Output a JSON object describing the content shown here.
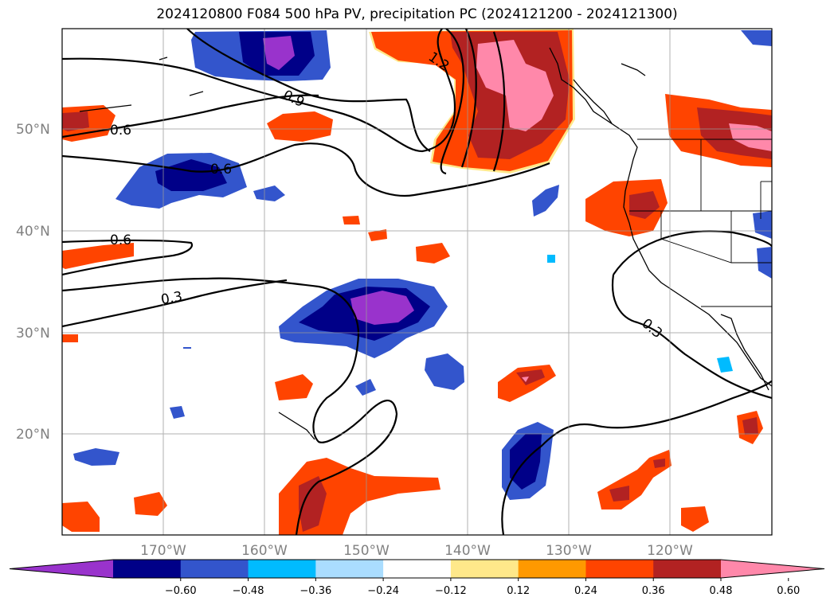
{
  "title": "2024120800 F084 500 hPa PV, precipitation PC (2024121200 - 2024121300)",
  "map": {
    "lat_labels": [
      "50°N",
      "40°N",
      "30°N",
      "20°N"
    ],
    "lon_labels": [
      "170°W",
      "160°W",
      "150°W",
      "140°W",
      "130°W",
      "120°W"
    ],
    "contour_labels": [
      "1.2",
      "0.9",
      "0.6",
      "0.6",
      "0.6",
      "0.3",
      "0.3"
    ]
  },
  "colorbar": {
    "ticks": [
      "−0.60",
      "−0.48",
      "−0.36",
      "−0.24",
      "−0.12",
      "0.12",
      "0.24",
      "0.36",
      "0.48",
      "0.60"
    ],
    "colors": [
      "#9933cc",
      "#000088",
      "#3355cc",
      "#00bbff",
      "#aaddff",
      "#ffffff",
      "#ffe88a",
      "#ff9900",
      "#ff4400",
      "#b22222",
      "#ff88aa"
    ]
  }
}
